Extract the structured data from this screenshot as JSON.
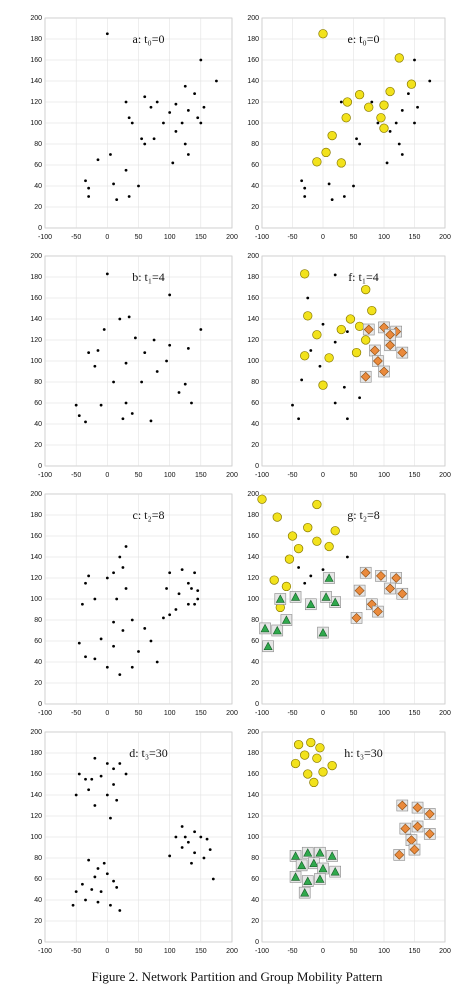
{
  "chart_data": [
    {
      "type": "scatter",
      "title": "a: t₀=0",
      "xlim": [
        -100,
        200
      ],
      "xticks": [
        -100,
        -50,
        0,
        50,
        100,
        150,
        200
      ],
      "ylim": [
        0,
        200
      ],
      "yticks": [
        0,
        20,
        40,
        60,
        80,
        100,
        120,
        140,
        160,
        180,
        200
      ],
      "grid": true,
      "series": [
        {
          "color": "#000000",
          "marker": "dot",
          "x": [
            0,
            150,
            175,
            125,
            60,
            30,
            80,
            110,
            140,
            35,
            70,
            100,
            130,
            155,
            40,
            90,
            120,
            150,
            110,
            55,
            75,
            5,
            -15,
            60,
            30,
            130,
            -35,
            -30,
            50,
            10,
            -30,
            15,
            35,
            105,
            125,
            145
          ],
          "y": [
            185,
            160,
            140,
            135,
            125,
            120,
            120,
            118,
            128,
            105,
            115,
            110,
            112,
            115,
            100,
            100,
            100,
            100,
            92,
            85,
            85,
            70,
            65,
            80,
            55,
            70,
            45,
            38,
            40,
            42,
            30,
            27,
            30,
            62,
            80,
            105
          ]
        }
      ]
    },
    {
      "type": "scatter",
      "title": "e: t₀=0",
      "xlim": [
        -100,
        200
      ],
      "xticks": [
        -100,
        -50,
        0,
        50,
        100,
        150,
        200
      ],
      "ylim": [
        0,
        200
      ],
      "yticks": [
        0,
        20,
        40,
        60,
        80,
        100,
        120,
        140,
        160,
        180,
        200
      ],
      "grid": true,
      "series": [
        {
          "color": "#000000",
          "marker": "dot",
          "x": [
            150,
            175,
            30,
            80,
            140,
            70,
            130,
            155,
            90,
            120,
            150,
            110,
            55,
            60,
            130,
            -35,
            -30,
            50,
            10,
            -30,
            15,
            35,
            105,
            125
          ],
          "y": [
            160,
            140,
            120,
            120,
            128,
            115,
            112,
            115,
            100,
            100,
            100,
            92,
            85,
            80,
            70,
            45,
            38,
            40,
            42,
            30,
            27,
            30,
            62,
            80
          ]
        },
        {
          "color": "#f2e21c",
          "marker": "circle",
          "x": [
            0,
            125,
            145,
            40,
            60,
            75,
            100,
            110,
            38,
            15,
            95,
            5,
            -10,
            30,
            100
          ],
          "y": [
            185,
            162,
            137,
            120,
            127,
            115,
            117,
            130,
            105,
            88,
            105,
            72,
            63,
            62,
            95
          ]
        }
      ]
    },
    {
      "type": "scatter",
      "title": "b: t₁=4",
      "xlim": [
        -100,
        200
      ],
      "xticks": [
        -100,
        -50,
        0,
        50,
        100,
        150,
        200
      ],
      "ylim": [
        0,
        200
      ],
      "yticks": [
        0,
        20,
        40,
        60,
        80,
        100,
        120,
        140,
        160,
        180,
        200
      ],
      "grid": true,
      "series": [
        {
          "color": "#000000",
          "marker": "dot",
          "x": [
            0,
            100,
            -30,
            -15,
            20,
            -5,
            35,
            45,
            75,
            100,
            150,
            130,
            60,
            95,
            -20,
            30,
            10,
            80,
            55,
            125,
            -10,
            30,
            40,
            -50,
            -45,
            -35,
            25,
            70,
            135,
            115
          ],
          "y": [
            183,
            163,
            108,
            110,
            140,
            130,
            142,
            122,
            120,
            115,
            130,
            112,
            108,
            100,
            95,
            98,
            80,
            90,
            80,
            78,
            58,
            60,
            50,
            58,
            48,
            42,
            45,
            43,
            60,
            70
          ]
        }
      ]
    },
    {
      "type": "scatter",
      "title": "f: t₁=4",
      "xlim": [
        -100,
        200
      ],
      "xticks": [
        -100,
        -50,
        0,
        50,
        100,
        150,
        200
      ],
      "ylim": [
        0,
        200
      ],
      "yticks": [
        0,
        20,
        40,
        60,
        80,
        100,
        120,
        140,
        160,
        180,
        200
      ],
      "grid": true,
      "series": [
        {
          "color": "#000000",
          "marker": "dot",
          "x": [
            20,
            -25,
            0,
            -20,
            20,
            40,
            -50,
            -40,
            20,
            40,
            35,
            60,
            -5,
            -35
          ],
          "y": [
            182,
            160,
            135,
            110,
            118,
            128,
            58,
            45,
            60,
            45,
            75,
            65,
            95,
            82
          ]
        },
        {
          "color": "#f2e21c",
          "marker": "circle",
          "x": [
            -30,
            70,
            80,
            -25,
            45,
            30,
            -10,
            60,
            -30,
            10,
            55,
            0,
            70
          ],
          "y": [
            183,
            168,
            148,
            143,
            140,
            130,
            125,
            133,
            105,
            103,
            108,
            77,
            120
          ]
        },
        {
          "color": "#ea8a3c",
          "marker": "diamond",
          "x": [
            75,
            100,
            120,
            85,
            110,
            130,
            90,
            70,
            100,
            110
          ],
          "y": [
            130,
            132,
            128,
            110,
            115,
            108,
            100,
            85,
            90,
            125
          ]
        }
      ]
    },
    {
      "type": "scatter",
      "title": "c: t₂=8",
      "xlim": [
        -100,
        200
      ],
      "xticks": [
        -100,
        -50,
        0,
        50,
        100,
        150,
        200
      ],
      "ylim": [
        0,
        200
      ],
      "yticks": [
        0,
        20,
        40,
        60,
        80,
        100,
        120,
        140,
        160,
        180,
        200
      ],
      "grid": true,
      "series": [
        {
          "color": "#000000",
          "marker": "dot",
          "x": [
            30,
            20,
            25,
            10,
            0,
            -30,
            -35,
            -40,
            -20,
            15,
            30,
            100,
            120,
            140,
            95,
            115,
            130,
            145,
            110,
            130,
            90,
            100,
            40,
            10,
            -10,
            -45,
            -35,
            -20,
            0,
            20,
            40,
            70,
            80,
            60,
            25,
            10,
            50,
            145,
            135,
            140
          ],
          "y": [
            150,
            140,
            130,
            125,
            120,
            122,
            115,
            95,
            100,
            100,
            110,
            125,
            128,
            125,
            110,
            105,
            115,
            108,
            90,
            95,
            82,
            85,
            80,
            78,
            62,
            58,
            45,
            43,
            35,
            28,
            35,
            60,
            40,
            72,
            70,
            55,
            50,
            100,
            110,
            95
          ]
        }
      ]
    },
    {
      "type": "scatter",
      "title": "g: t₂=8",
      "xlim": [
        -100,
        200
      ],
      "xticks": [
        -100,
        -50,
        0,
        50,
        100,
        150,
        200
      ],
      "ylim": [
        0,
        200
      ],
      "yticks": [
        0,
        20,
        40,
        60,
        80,
        100,
        120,
        140,
        160,
        180,
        200
      ],
      "grid": true,
      "series": [
        {
          "color": "#000000",
          "marker": "dot",
          "x": [
            -20,
            -40,
            0,
            -30,
            40
          ],
          "y": [
            122,
            130,
            128,
            115,
            140
          ]
        },
        {
          "color": "#f2e21c",
          "marker": "circle",
          "x": [
            -100,
            -10,
            -75,
            -50,
            -25,
            -10,
            -40,
            10,
            -55,
            -80,
            -60,
            -70,
            20
          ],
          "y": [
            195,
            190,
            178,
            160,
            168,
            155,
            148,
            150,
            138,
            118,
            112,
            92,
            165
          ]
        },
        {
          "color": "#2fa84c",
          "marker": "triangle",
          "x": [
            -95,
            -90,
            -75,
            -70,
            -60,
            -45,
            -20,
            0,
            10,
            20,
            5
          ],
          "y": [
            72,
            55,
            70,
            100,
            80,
            102,
            95,
            68,
            120,
            97,
            102
          ]
        },
        {
          "color": "#ea8a3c",
          "marker": "diamond",
          "x": [
            70,
            95,
            120,
            60,
            80,
            110,
            130,
            55,
            90
          ],
          "y": [
            125,
            122,
            120,
            108,
            95,
            110,
            105,
            82,
            88
          ]
        }
      ]
    },
    {
      "type": "scatter",
      "title": "d: t₃=30",
      "xlim": [
        -100,
        200
      ],
      "xticks": [
        -100,
        -50,
        0,
        50,
        100,
        150,
        200
      ],
      "ylim": [
        0,
        200
      ],
      "yticks": [
        0,
        20,
        40,
        60,
        80,
        100,
        120,
        140,
        160,
        180,
        200
      ],
      "grid": true,
      "series": [
        {
          "color": "#000000",
          "marker": "dot",
          "x": [
            -20,
            0,
            10,
            20,
            30,
            -45,
            -35,
            -25,
            -10,
            10,
            -30,
            0,
            15,
            -50,
            -20,
            5,
            -30,
            -15,
            -5,
            -20,
            0,
            10,
            -40,
            -25,
            -10,
            15,
            -50,
            -35,
            5,
            -55,
            20,
            -15,
            120,
            140,
            150,
            110,
            130,
            160,
            120,
            140,
            165,
            100,
            135,
            155,
            170,
            125
          ],
          "y": [
            175,
            170,
            165,
            170,
            160,
            160,
            155,
            155,
            158,
            150,
            145,
            140,
            135,
            140,
            130,
            118,
            78,
            70,
            75,
            62,
            65,
            58,
            55,
            50,
            48,
            52,
            48,
            40,
            35,
            35,
            30,
            38,
            110,
            105,
            100,
            100,
            95,
            98,
            90,
            85,
            88,
            82,
            75,
            80,
            60,
            100
          ]
        }
      ]
    },
    {
      "type": "scatter",
      "title": "h: t₃=30",
      "xlim": [
        -100,
        200
      ],
      "xticks": [
        -100,
        -50,
        0,
        50,
        100,
        150,
        200
      ],
      "ylim": [
        0,
        200
      ],
      "yticks": [
        0,
        20,
        40,
        60,
        80,
        100,
        120,
        140,
        160,
        180,
        200
      ],
      "grid": true,
      "series": [
        {
          "color": "#f2e21c",
          "marker": "circle",
          "x": [
            -40,
            -20,
            -5,
            -30,
            -10,
            15,
            -45,
            -25,
            0,
            -15
          ],
          "y": [
            188,
            190,
            185,
            178,
            175,
            168,
            170,
            160,
            162,
            152
          ]
        },
        {
          "color": "#2fa84c",
          "marker": "triangle",
          "x": [
            -45,
            -25,
            -5,
            15,
            -35,
            -15,
            0,
            20,
            -45,
            -25,
            -5,
            -30
          ],
          "y": [
            82,
            85,
            85,
            82,
            73,
            75,
            70,
            67,
            62,
            58,
            60,
            47
          ]
        },
        {
          "color": "#ea8a3c",
          "marker": "diamond",
          "x": [
            130,
            155,
            175,
            135,
            155,
            175,
            145,
            150,
            125
          ],
          "y": [
            130,
            128,
            122,
            108,
            110,
            103,
            97,
            88,
            83
          ]
        }
      ]
    }
  ],
  "caption": "Figure 2. Network Partition and Group Mobility Pattern"
}
